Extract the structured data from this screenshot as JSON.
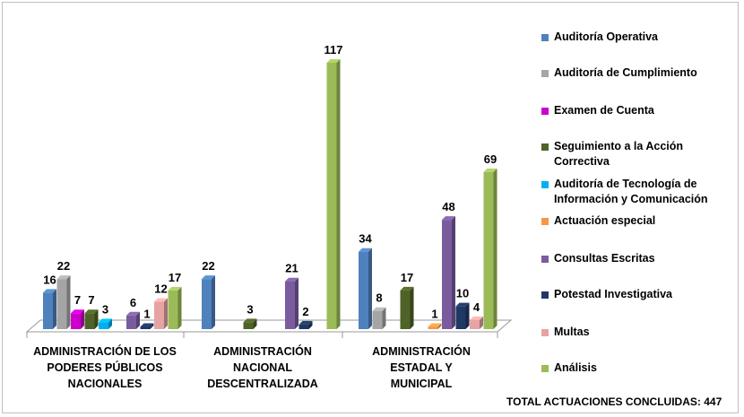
{
  "chart_data": {
    "type": "bar3d",
    "categories": [
      "ADMINISTRACIÓN DE LOS PODERES PÚBLICOS NACIONALES",
      "ADMINISTRACIÓN NACIONAL DESCENTRALIZADA",
      "ADMINISTRACIÓN ESTADAL Y MUNICIPAL"
    ],
    "series": [
      {
        "name": "Auditoría Operativa",
        "color": "#4f81bd",
        "values": [
          16,
          22,
          34
        ]
      },
      {
        "name": "Auditoría de Cumplimiento",
        "color": "#a5a5a5",
        "values": [
          22,
          null,
          8
        ]
      },
      {
        "name": "Examen de Cuenta",
        "color": "#cc00cc",
        "values": [
          7,
          null,
          null
        ]
      },
      {
        "name": "Seguimiento a la Acción Correctiva",
        "color": "#4f6228",
        "values": [
          7,
          3,
          17
        ]
      },
      {
        "name": "Auditoría de Tecnología de Información y Comunicación",
        "color": "#00b0f0",
        "values": [
          3,
          null,
          null
        ]
      },
      {
        "name": "Actuación especial",
        "color": "#f79646",
        "values": [
          null,
          null,
          1
        ]
      },
      {
        "name": "Consultas Escritas",
        "color": "#7a5c9e",
        "values": [
          6,
          21,
          48
        ]
      },
      {
        "name": "Potestad Investigativa",
        "color": "#1f3864",
        "values": [
          1,
          2,
          10
        ]
      },
      {
        "name": "Multas",
        "color": "#e6a3a3",
        "values": [
          12,
          null,
          4
        ]
      },
      {
        "name": "Análisis",
        "color": "#9bbb59",
        "values": [
          17,
          117,
          69
        ]
      }
    ],
    "annotation": "TOTAL ACTUACIONES CONCLUIDAS: 447"
  }
}
